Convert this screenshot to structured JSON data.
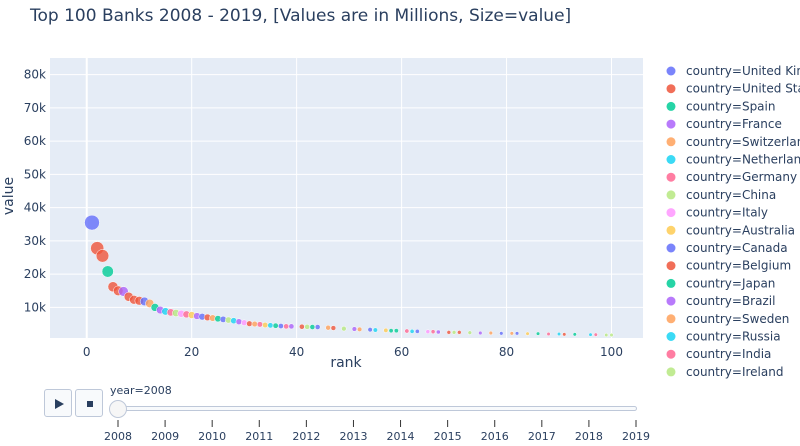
{
  "chart_data": {
    "type": "scatter",
    "title": "Top 100 Banks 2008 - 2019, [Values are in Millions, Size=value]",
    "xlabel": "rank",
    "ylabel": "value",
    "xlim": [
      -7,
      106
    ],
    "ylim": [
      800,
      85000
    ],
    "x_ticks": [
      0,
      20,
      40,
      60,
      80,
      100
    ],
    "y_ticks": [
      10000,
      20000,
      30000,
      40000,
      50000,
      60000,
      70000,
      80000
    ],
    "y_tick_labels": [
      "10k",
      "20k",
      "30k",
      "40k",
      "50k",
      "60k",
      "70k",
      "80k"
    ],
    "grid": true,
    "legend_position": "right",
    "series": [
      {
        "name": "country=United Kingdom",
        "color": "#636efa",
        "points": [
          [
            1,
            35500
          ],
          [
            11,
            11800
          ],
          [
            26,
            6400
          ],
          [
            44,
            4100
          ],
          [
            63,
            2800
          ],
          [
            82,
            2200
          ]
        ]
      },
      {
        "name": "country=United States",
        "color": "#EF553B",
        "points": [
          [
            2,
            27800
          ],
          [
            3,
            25500
          ],
          [
            5,
            16200
          ],
          [
            6,
            15000
          ],
          [
            8,
            13200
          ],
          [
            9,
            12300
          ],
          [
            10,
            12000
          ],
          [
            31,
            5100
          ],
          [
            47,
            3800
          ],
          [
            71,
            2500
          ],
          [
            91,
            1900
          ]
        ]
      },
      {
        "name": "country=Spain",
        "color": "#00cc96",
        "points": [
          [
            4,
            20800
          ],
          [
            13,
            10000
          ],
          [
            36,
            4500
          ],
          [
            58,
            3000
          ],
          [
            86,
            2100
          ]
        ]
      },
      {
        "name": "country=France",
        "color": "#ab63fa",
        "points": [
          [
            7,
            14800
          ],
          [
            14,
            9200
          ],
          [
            21,
            7400
          ],
          [
            39,
            4300
          ],
          [
            67,
            2600
          ]
        ]
      },
      {
        "name": "country=Switzerland",
        "color": "#FFA15A",
        "points": [
          [
            12,
            11200
          ],
          [
            24,
            6800
          ],
          [
            52,
            3400
          ],
          [
            77,
            2300
          ]
        ]
      },
      {
        "name": "country=Netherlands",
        "color": "#19d3f3",
        "points": [
          [
            15,
            8800
          ],
          [
            28,
            6000
          ],
          [
            55,
            3200
          ],
          [
            96,
            1800
          ]
        ]
      },
      {
        "name": "country=Germany",
        "color": "#FF6692",
        "points": [
          [
            16,
            8500
          ],
          [
            19,
            7900
          ],
          [
            33,
            4900
          ],
          [
            61,
            2900
          ],
          [
            88,
            2000
          ]
        ]
      },
      {
        "name": "country=China",
        "color": "#B6E880",
        "points": [
          [
            17,
            8300
          ],
          [
            27,
            6200
          ],
          [
            49,
            3600
          ],
          [
            73,
            2400
          ],
          [
            99,
            1700
          ]
        ]
      },
      {
        "name": "country=Italy",
        "color": "#FF97FF",
        "points": [
          [
            18,
            8100
          ],
          [
            30,
            5400
          ],
          [
            65,
            2700
          ]
        ]
      },
      {
        "name": "country=Australia",
        "color": "#FECB52",
        "points": [
          [
            20,
            7700
          ],
          [
            34,
            4700
          ],
          [
            57,
            3100
          ],
          [
            84,
            2100
          ]
        ]
      },
      {
        "name": "country=Canada",
        "color": "#636efa",
        "points": [
          [
            22,
            7200
          ],
          [
            37,
            4400
          ],
          [
            54,
            3300
          ],
          [
            79,
            2200
          ]
        ]
      },
      {
        "name": "country=Belgium",
        "color": "#EF553B",
        "points": [
          [
            23,
            7000
          ],
          [
            41,
            4200
          ],
          [
            69,
            2500
          ]
        ]
      },
      {
        "name": "country=Japan",
        "color": "#00cc96",
        "points": [
          [
            25,
            6600
          ],
          [
            43,
            4100
          ],
          [
            59,
            3000
          ],
          [
            93,
            1900
          ]
        ]
      },
      {
        "name": "country=Brazil",
        "color": "#ab63fa",
        "points": [
          [
            29,
            5700
          ],
          [
            51,
            3500
          ],
          [
            75,
            2300
          ]
        ]
      },
      {
        "name": "country=Sweden",
        "color": "#FFA15A",
        "points": [
          [
            32,
            5000
          ],
          [
            46,
            3900
          ],
          [
            81,
            2200
          ]
        ]
      },
      {
        "name": "country=Russia",
        "color": "#19d3f3",
        "points": [
          [
            35,
            4600
          ],
          [
            62,
            2800
          ],
          [
            90,
            2000
          ]
        ]
      },
      {
        "name": "country=India",
        "color": "#FF6692",
        "points": [
          [
            38,
            4300
          ],
          [
            66,
            2700
          ],
          [
            97,
            1800
          ]
        ]
      },
      {
        "name": "country=Ireland",
        "color": "#B6E880",
        "points": [
          [
            42,
            4150
          ],
          [
            70,
            2500
          ],
          [
            100,
            1700
          ]
        ]
      }
    ]
  },
  "animation": {
    "current_value_label": "year=2008",
    "current_year_index": 0,
    "years": [
      "2008",
      "2009",
      "2010",
      "2011",
      "2012",
      "2013",
      "2014",
      "2015",
      "2016",
      "2017",
      "2018",
      "2019"
    ],
    "play_icon": "play-icon",
    "stop_icon": "stop-icon"
  }
}
